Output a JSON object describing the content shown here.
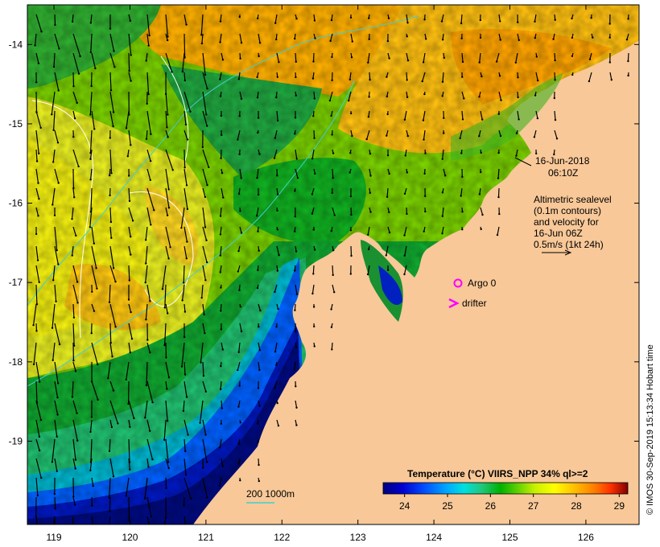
{
  "map": {
    "lon_ticks": [
      "119",
      "120",
      "121",
      "122",
      "123",
      "124",
      "125",
      "126"
    ],
    "lat_ticks": [
      "-14",
      "-15",
      "-16",
      "-17",
      "-18",
      "-19"
    ],
    "lon_range": [
      118.65,
      126.7
    ],
    "lat_range": [
      -20.05,
      -13.5
    ]
  },
  "annotations": {
    "datetime_line1": "16-Jun-2018",
    "datetime_line2": "06:10Z",
    "altimetry_lines": [
      "Altimetric sealevel",
      "(0.1m contours)",
      "and velocity for",
      "16-Jun 06Z",
      "0.5m/s (1kt 24h)"
    ],
    "argo_label": "Argo 0",
    "drifter_label": "drifter",
    "bathymetry_label": "200  1000m"
  },
  "colorbar": {
    "title": "Temperature (°C) VIIRS_NPP 34% ql>=2",
    "ticks": [
      "24",
      "25",
      "26",
      "27",
      "28",
      "29"
    ],
    "range": [
      23.5,
      29.2
    ],
    "colors": [
      "#000080",
      "#0000d0",
      "#0050ff",
      "#00a8ff",
      "#00e0e0",
      "#20c880",
      "#00b000",
      "#60d000",
      "#c8f000",
      "#ffff00",
      "#ffc000",
      "#ff8000",
      "#ff3000",
      "#c00000",
      "#800000"
    ]
  },
  "colors": {
    "land": "#f8c898",
    "deep_blue": "#000a80",
    "vector": "#000000",
    "argo": "#ff00ff",
    "drifter": "#ff00ff",
    "contour_cyan": "#40d0d0"
  },
  "credit": "© IMOS 30-Sep-2019 15:13:34 Hobart time"
}
